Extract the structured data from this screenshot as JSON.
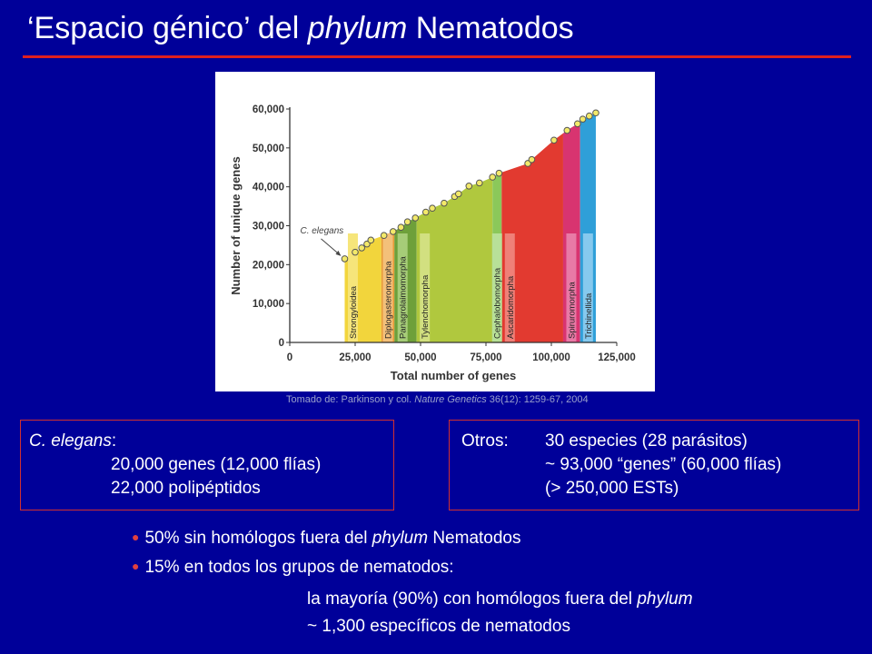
{
  "slide": {
    "title_pre": "‘Espacio génico’ del ",
    "title_em": "phylum",
    "title_post": " Nematodos",
    "caption_pre": "Tomado de: Parkinson y col. ",
    "caption_em": "Nature Genetics",
    "caption_post": " 36(12): 1259-67, 2004"
  },
  "box_left": {
    "label_em": "C. elegans",
    "label_colon": ":",
    "line1": "20,000 genes (12,000 flías)",
    "line2": "22,000 polipéptidos"
  },
  "box_right": {
    "label": "Otros:",
    "line1": "30 especies (28 parásitos)",
    "line2": "~ 93,000 “genes” (60,000 flías)",
    "line3": "(> 250,000 ESTs)"
  },
  "bullets": {
    "b1_pre": "50% sin homólogos fuera del ",
    "b1_em": "phylum",
    "b1_post": " Nematodos",
    "b2": "15% en todos los grupos de nematodos:",
    "sub1_pre": "la mayoría (90%) con homólogos fuera del ",
    "sub1_em": "phylum",
    "sub2": "~ 1,300 específicos de nematodos"
  },
  "chart_data": {
    "type": "area",
    "title": "",
    "xlabel": "Total number of genes",
    "ylabel": "Number of unique genes",
    "xlim": [
      0,
      125000
    ],
    "ylim": [
      0,
      60000
    ],
    "x_ticks": [
      0,
      25000,
      50000,
      75000,
      100000,
      125000
    ],
    "x_tick_labels": [
      "0",
      "25,000",
      "50,000",
      "75,000",
      "100,000",
      "125,000"
    ],
    "y_ticks": [
      0,
      10000,
      20000,
      30000,
      40000,
      50000,
      60000
    ],
    "y_tick_labels": [
      "0",
      "10,000",
      "20,000",
      "30,000",
      "40,000",
      "50,000",
      "60,000"
    ],
    "annotation": "C. elegans",
    "annotation_point": [
      21000,
      21500
    ],
    "points": [
      [
        21000,
        21500
      ],
      [
        25000,
        23200
      ],
      [
        27500,
        24300
      ],
      [
        29500,
        25300
      ],
      [
        31000,
        26300
      ],
      [
        36000,
        27500
      ],
      [
        39500,
        28500
      ],
      [
        42500,
        29600
      ],
      [
        45000,
        31000
      ],
      [
        48000,
        32000
      ],
      [
        52000,
        33500
      ],
      [
        54500,
        34500
      ],
      [
        59000,
        35800
      ],
      [
        63000,
        37500
      ],
      [
        64500,
        38200
      ],
      [
        68500,
        40200
      ],
      [
        72500,
        41000
      ],
      [
        77500,
        42500
      ],
      [
        80000,
        43500
      ],
      [
        91000,
        46000
      ],
      [
        92500,
        47000
      ],
      [
        101000,
        52000
      ],
      [
        106000,
        54500
      ],
      [
        110000,
        56200
      ],
      [
        112000,
        57400
      ],
      [
        114500,
        58200
      ],
      [
        117000,
        59000
      ]
    ],
    "series": [
      {
        "name": "Strongyloidea",
        "x_start": 21000,
        "x_end": 35000,
        "color": "#f2d53c",
        "label_color": "#f6e57a"
      },
      {
        "name": "Diplogasteromorpha",
        "x_start": 35000,
        "x_end": 40000,
        "color": "#e89a38",
        "label_color": "#f3c07a"
      },
      {
        "name": "Panagrolaimomorpha",
        "x_start": 40000,
        "x_end": 48500,
        "color": "#6ea03a",
        "label_color": "#a6cc78"
      },
      {
        "name": "Tylenchomorpha",
        "x_start": 48500,
        "x_end": 77500,
        "color": "#b0c83e",
        "label_color": "#d2e080"
      },
      {
        "name": "Cephalobomorpha",
        "x_start": 77500,
        "x_end": 81000,
        "color": "#8bc85a",
        "label_color": "#b8e098"
      },
      {
        "name": "Ascaridomorpha",
        "x_start": 81000,
        "x_end": 104500,
        "color": "#e23a30",
        "label_color": "#ef8078"
      },
      {
        "name": "Spiruromorpha",
        "x_start": 104500,
        "x_end": 111000,
        "color": "#d83470",
        "label_color": "#e87aa6"
      },
      {
        "name": "Trichinellida",
        "x_start": 111000,
        "x_end": 117000,
        "color": "#2f9fd8",
        "label_color": "#86c9ee"
      }
    ]
  }
}
